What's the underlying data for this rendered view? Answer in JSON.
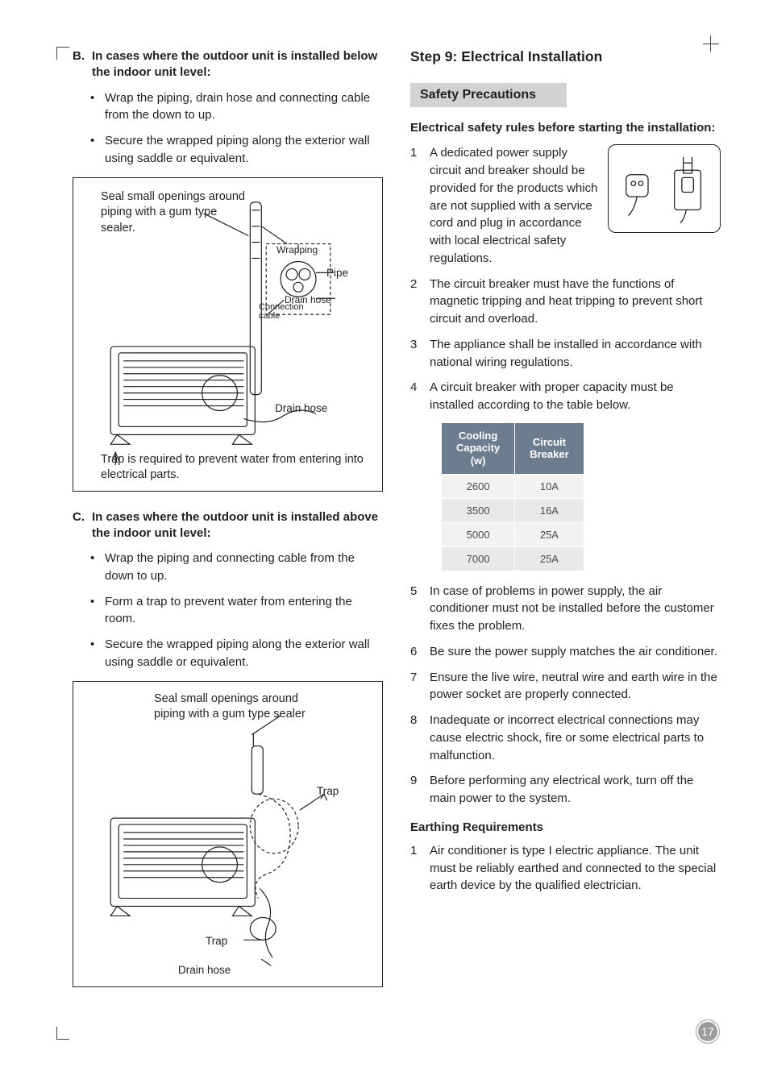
{
  "page_number": "17",
  "left": {
    "section_B": {
      "letter": "B.",
      "title": "In cases where the outdoor unit is installed  below the indoor unit level:",
      "bullets": [
        "Wrap the piping, drain hose and connecting cable from the down to up.",
        "Secure the wrapped piping along the exterior wall using saddle or equivalent."
      ],
      "figure": {
        "caption_top": "Seal small openings around piping with a gum type sealer.",
        "labels": {
          "wrapping": "Wrapping",
          "pipe": "Pipe",
          "drain_hose_top": "Drain hose",
          "connection_cable": "Connection cable",
          "drain_hose_bottom": "Drain hose"
        },
        "caption_bottom": "Trap is required to prevent water from entering into electrical parts."
      }
    },
    "section_C": {
      "letter": "C.",
      "title": "In cases where the outdoor unit is installed above the indoor unit level:",
      "bullets": [
        "Wrap the piping and connecting cable from the down to up.",
        "Form a trap to prevent water from entering the room.",
        "Secure the wrapped piping along the exterior wall using saddle or equivalent."
      ],
      "figure": {
        "caption_top": "Seal small openings around piping with a gum type sealer",
        "labels": {
          "trap_top": "Trap",
          "trap_bottom": "Trap",
          "drain_hose": "Drain hose"
        }
      }
    }
  },
  "right": {
    "step_title": "Step 9: Electrical Installation",
    "safety_box": "Safety Precautions",
    "rules_intro": "Electrical safety rules before starting the installation:",
    "rules": [
      "A dedicated power supply circuit and breaker should be provided for the products which are not supplied with a service cord and plug in accordance with local electrical safety regulations.",
      "The circuit breaker must have the functions of magnetic tripping and heat tripping to prevent short circuit and overload.",
      "The appliance shall be installed in accordance with national wiring regulations.",
      "A circuit breaker with proper capacity must be installed according to the table below."
    ],
    "breaker_table": {
      "columns": [
        "Cooling Capacity (w)",
        "Circuit Breaker"
      ],
      "rows": [
        [
          "2600",
          "10A"
        ],
        [
          "3500",
          "16A"
        ],
        [
          "5000",
          "25A"
        ],
        [
          "7000",
          "25A"
        ]
      ],
      "header_bg": "#6d7d90",
      "header_fg": "#ffffff",
      "row_bg_odd": "#e8e9ea",
      "row_bg_even": "#f2f2f3"
    },
    "rules_after": [
      "In case of problems in power supply, the air conditioner must not be installed before the customer fixes the problem.",
      "Be sure the power supply matches the air conditioner.",
      "Ensure the live wire, neutral wire and earth wire in the power socket are properly connected.",
      "Inadequate or incorrect electrical connections may cause electric shock, fire or some electrical parts to malfunction.",
      "Before performing any electrical work, turn off the main power to the system."
    ],
    "earthing_title": "Earthing Requirements",
    "earthing": [
      "Air conditioner is type I electric appliance. The unit must be reliably earthed and connected to the special earth device by the qualified electrician."
    ]
  }
}
